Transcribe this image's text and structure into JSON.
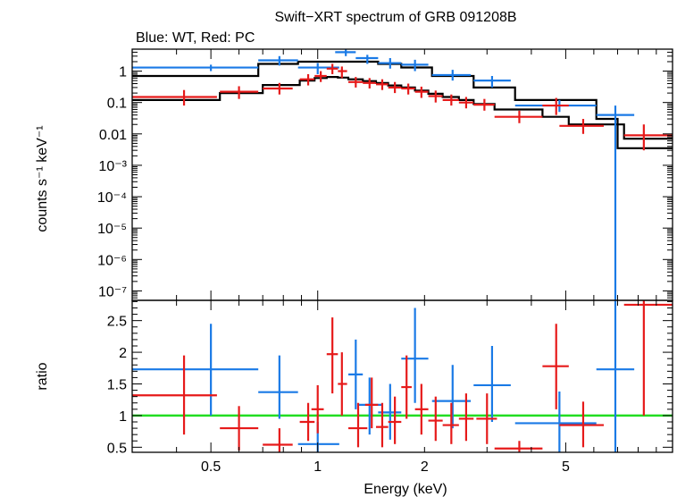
{
  "title": "Swift−XRT spectrum of GRB 091208B",
  "subtitle": "Blue: WT, Red: PC",
  "colors": {
    "wt": "#1a7ae6",
    "pc": "#e61a1a",
    "model": "#000000",
    "ratio_line": "#22dd22"
  },
  "chart_data": [
    {
      "type": "scatter",
      "panel": "spectrum",
      "xlabel": "Energy (keV)",
      "ylabel": "counts s⁻¹ keV⁻¹",
      "xscale": "log",
      "yscale": "log",
      "xlim": [
        0.3,
        10
      ],
      "ylim": [
        5e-08,
        5
      ],
      "xticklabels": [
        "0.5",
        "1",
        "2",
        "5"
      ],
      "yticks": [
        1e-07,
        1e-06,
        1e-05,
        0.0001,
        0.001,
        0.01,
        0.1,
        1
      ],
      "yticklabels": [
        "10⁻⁷",
        "10⁻⁶",
        "10⁻⁵",
        "10⁻⁴",
        "10⁻³",
        "0.01",
        "0.1",
        "1"
      ],
      "series": [
        {
          "name": "WT",
          "color": "#1a7ae6",
          "points": [
            {
              "x": 0.5,
              "xlo": 0.3,
              "xhi": 0.68,
              "y": 1.3,
              "ylo": 1.0,
              "yhi": 1.6
            },
            {
              "x": 0.78,
              "xlo": 0.68,
              "xhi": 0.88,
              "y": 2.2,
              "ylo": 1.5,
              "yhi": 3.0
            },
            {
              "x": 1.0,
              "xlo": 0.88,
              "xhi": 1.15,
              "y": 1.3,
              "ylo": 0.8,
              "yhi": 1.8
            },
            {
              "x": 1.2,
              "xlo": 1.12,
              "xhi": 1.28,
              "y": 4.0,
              "ylo": 3.0,
              "yhi": 5.0
            },
            {
              "x": 1.38,
              "xlo": 1.28,
              "xhi": 1.48,
              "y": 2.6,
              "ylo": 1.7,
              "yhi": 3.3
            },
            {
              "x": 1.6,
              "xlo": 1.48,
              "xhi": 1.72,
              "y": 1.8,
              "ylo": 1.2,
              "yhi": 2.6
            },
            {
              "x": 1.88,
              "xlo": 1.72,
              "xhi": 2.05,
              "y": 1.6,
              "ylo": 1.0,
              "yhi": 2.3
            },
            {
              "x": 2.4,
              "xlo": 2.1,
              "xhi": 2.7,
              "y": 0.75,
              "ylo": 0.5,
              "yhi": 1.1
            },
            {
              "x": 3.1,
              "xlo": 2.75,
              "xhi": 3.5,
              "y": 0.5,
              "ylo": 0.3,
              "yhi": 0.7
            },
            {
              "x": 4.8,
              "xlo": 3.6,
              "xhi": 6.1,
              "y": 0.08,
              "ylo": 0.05,
              "yhi": 0.12
            },
            {
              "x": 6.9,
              "xlo": 6.1,
              "xhi": 7.8,
              "y": 0.04,
              "ylo": 5e-08,
              "yhi": 0.08
            }
          ]
        },
        {
          "name": "PC",
          "color": "#e61a1a",
          "points": [
            {
              "x": 0.42,
              "xlo": 0.3,
              "xhi": 0.52,
              "y": 0.15,
              "ylo": 0.08,
              "yhi": 0.25
            },
            {
              "x": 0.6,
              "xlo": 0.53,
              "xhi": 0.68,
              "y": 0.22,
              "ylo": 0.13,
              "yhi": 0.33
            },
            {
              "x": 0.78,
              "xlo": 0.7,
              "xhi": 0.85,
              "y": 0.28,
              "ylo": 0.18,
              "yhi": 0.42
            },
            {
              "x": 0.94,
              "xlo": 0.89,
              "xhi": 0.98,
              "y": 0.55,
              "ylo": 0.35,
              "yhi": 0.8
            },
            {
              "x": 1.02,
              "xlo": 0.98,
              "xhi": 1.06,
              "y": 0.7,
              "ylo": 0.45,
              "yhi": 1.0
            },
            {
              "x": 1.1,
              "xlo": 1.06,
              "xhi": 1.14,
              "y": 1.2,
              "ylo": 0.8,
              "yhi": 1.7
            },
            {
              "x": 1.17,
              "xlo": 1.14,
              "xhi": 1.21,
              "y": 1.0,
              "ylo": 0.6,
              "yhi": 1.4
            },
            {
              "x": 1.28,
              "xlo": 1.22,
              "xhi": 1.34,
              "y": 0.45,
              "ylo": 0.3,
              "yhi": 0.65
            },
            {
              "x": 1.4,
              "xlo": 1.34,
              "xhi": 1.46,
              "y": 0.42,
              "ylo": 0.28,
              "yhi": 0.6
            },
            {
              "x": 1.52,
              "xlo": 1.46,
              "xhi": 1.58,
              "y": 0.38,
              "ylo": 0.25,
              "yhi": 0.55
            },
            {
              "x": 1.65,
              "xlo": 1.58,
              "xhi": 1.72,
              "y": 0.3,
              "ylo": 0.2,
              "yhi": 0.45
            },
            {
              "x": 1.8,
              "xlo": 1.72,
              "xhi": 1.88,
              "y": 0.28,
              "ylo": 0.18,
              "yhi": 0.4
            },
            {
              "x": 1.96,
              "xlo": 1.88,
              "xhi": 2.05,
              "y": 0.22,
              "ylo": 0.14,
              "yhi": 0.32
            },
            {
              "x": 2.15,
              "xlo": 2.05,
              "xhi": 2.25,
              "y": 0.16,
              "ylo": 0.1,
              "yhi": 0.24
            },
            {
              "x": 2.38,
              "xlo": 2.25,
              "xhi": 2.5,
              "y": 0.12,
              "ylo": 0.08,
              "yhi": 0.18
            },
            {
              "x": 2.62,
              "xlo": 2.5,
              "xhi": 2.75,
              "y": 0.1,
              "ylo": 0.065,
              "yhi": 0.15
            },
            {
              "x": 2.95,
              "xlo": 2.75,
              "xhi": 3.15,
              "y": 0.085,
              "ylo": 0.055,
              "yhi": 0.13
            },
            {
              "x": 3.7,
              "xlo": 3.15,
              "xhi": 4.3,
              "y": 0.035,
              "ylo": 0.022,
              "yhi": 0.055
            },
            {
              "x": 4.7,
              "xlo": 4.3,
              "xhi": 5.1,
              "y": 0.08,
              "ylo": 0.04,
              "yhi": 0.14
            },
            {
              "x": 5.6,
              "xlo": 4.8,
              "xhi": 6.4,
              "y": 0.018,
              "ylo": 0.01,
              "yhi": 0.03
            },
            {
              "x": 8.3,
              "xlo": 7.3,
              "xhi": 10.0,
              "y": 0.009,
              "ylo": 0.003,
              "yhi": 0.02
            }
          ]
        }
      ],
      "models": [
        {
          "name": "WT model",
          "color": "#000000",
          "steps": [
            {
              "x0": 0.3,
              "x1": 0.68,
              "y": 0.7
            },
            {
              "x0": 0.68,
              "x1": 0.88,
              "y": 1.7
            },
            {
              "x0": 0.88,
              "x1": 1.15,
              "y": 2.0
            },
            {
              "x0": 1.15,
              "x1": 1.48,
              "y": 2.0
            },
            {
              "x0": 1.48,
              "x1": 1.72,
              "y": 1.7
            },
            {
              "x0": 1.72,
              "x1": 2.1,
              "y": 1.3
            },
            {
              "x0": 2.1,
              "x1": 2.75,
              "y": 0.7
            },
            {
              "x0": 2.75,
              "x1": 3.6,
              "y": 0.3
            },
            {
              "x0": 3.6,
              "x1": 6.1,
              "y": 0.12
            },
            {
              "x0": 6.1,
              "x1": 7.0,
              "y": 0.03
            },
            {
              "x0": 7.0,
              "x1": 10.0,
              "y": 0.0035
            }
          ]
        },
        {
          "name": "PC model",
          "color": "#000000",
          "steps": [
            {
              "x0": 0.3,
              "x1": 0.53,
              "y": 0.12
            },
            {
              "x0": 0.53,
              "x1": 0.7,
              "y": 0.2
            },
            {
              "x0": 0.7,
              "x1": 0.89,
              "y": 0.36
            },
            {
              "x0": 0.89,
              "x1": 0.98,
              "y": 0.5
            },
            {
              "x0": 0.98,
              "x1": 1.06,
              "y": 0.6
            },
            {
              "x0": 1.06,
              "x1": 1.14,
              "y": 0.65
            },
            {
              "x0": 1.14,
              "x1": 1.22,
              "y": 0.62
            },
            {
              "x0": 1.22,
              "x1": 1.34,
              "y": 0.55
            },
            {
              "x0": 1.34,
              "x1": 1.46,
              "y": 0.48
            },
            {
              "x0": 1.46,
              "x1": 1.58,
              "y": 0.42
            },
            {
              "x0": 1.58,
              "x1": 1.72,
              "y": 0.35
            },
            {
              "x0": 1.72,
              "x1": 1.88,
              "y": 0.3
            },
            {
              "x0": 1.88,
              "x1": 2.05,
              "y": 0.24
            },
            {
              "x0": 2.05,
              "x1": 2.25,
              "y": 0.19
            },
            {
              "x0": 2.25,
              "x1": 2.5,
              "y": 0.15
            },
            {
              "x0": 2.5,
              "x1": 2.75,
              "y": 0.12
            },
            {
              "x0": 2.75,
              "x1": 3.15,
              "y": 0.09
            },
            {
              "x0": 3.15,
              "x1": 4.3,
              "y": 0.06
            },
            {
              "x0": 4.3,
              "x1": 5.1,
              "y": 0.035
            },
            {
              "x0": 5.1,
              "x1": 7.3,
              "y": 0.02
            },
            {
              "x0": 7.3,
              "x1": 10.0,
              "y": 0.007
            }
          ]
        }
      ]
    },
    {
      "type": "scatter",
      "panel": "ratio",
      "xlabel": "Energy (keV)",
      "ylabel": "ratio",
      "xscale": "log",
      "xlim": [
        0.3,
        10
      ],
      "ylim": [
        0.42,
        2.82
      ],
      "xticklabels": [
        "0.5",
        "1",
        "2",
        "5"
      ],
      "yticks": [
        0.5,
        1,
        1.5,
        2,
        2.5
      ],
      "yticklabels": [
        "0.5",
        "1",
        "1.5",
        "2",
        "2.5"
      ],
      "reference_line": 1,
      "series": [
        {
          "name": "WT",
          "color": "#1a7ae6",
          "points": [
            {
              "x": 0.5,
              "xlo": 0.3,
              "xhi": 0.68,
              "y": 1.73,
              "ylo": 1.0,
              "yhi": 2.45
            },
            {
              "x": 0.78,
              "xlo": 0.68,
              "xhi": 0.88,
              "y": 1.37,
              "ylo": 0.95,
              "yhi": 1.95
            },
            {
              "x": 1.0,
              "xlo": 0.88,
              "xhi": 1.15,
              "y": 0.55,
              "ylo": 0.42,
              "yhi": 0.9
            },
            {
              "x": 1.28,
              "xlo": 1.22,
              "xhi": 1.34,
              "y": 1.65,
              "ylo": 1.1,
              "yhi": 2.2
            },
            {
              "x": 1.4,
              "xlo": 1.3,
              "xhi": 1.52,
              "y": 1.17,
              "ylo": 0.7,
              "yhi": 1.6
            },
            {
              "x": 1.6,
              "xlo": 1.48,
              "xhi": 1.72,
              "y": 1.05,
              "ylo": 0.62,
              "yhi": 1.5
            },
            {
              "x": 1.88,
              "xlo": 1.72,
              "xhi": 2.05,
              "y": 1.9,
              "ylo": 1.2,
              "yhi": 2.7
            },
            {
              "x": 2.4,
              "xlo": 2.1,
              "xhi": 2.7,
              "y": 1.23,
              "ylo": 0.8,
              "yhi": 1.8
            },
            {
              "x": 3.1,
              "xlo": 2.75,
              "xhi": 3.5,
              "y": 1.48,
              "ylo": 0.9,
              "yhi": 2.1
            },
            {
              "x": 4.8,
              "xlo": 3.6,
              "xhi": 6.1,
              "y": 0.88,
              "ylo": 0.42,
              "yhi": 1.38
            },
            {
              "x": 6.9,
              "xlo": 6.1,
              "xhi": 7.8,
              "y": 1.73,
              "ylo": 0.42,
              "yhi": 2.82
            }
          ]
        },
        {
          "name": "PC",
          "color": "#e61a1a",
          "points": [
            {
              "x": 0.42,
              "xlo": 0.3,
              "xhi": 0.52,
              "y": 1.32,
              "ylo": 0.7,
              "yhi": 1.95
            },
            {
              "x": 0.6,
              "xlo": 0.53,
              "xhi": 0.68,
              "y": 0.8,
              "ylo": 0.45,
              "yhi": 1.15
            },
            {
              "x": 0.78,
              "xlo": 0.7,
              "xhi": 0.85,
              "y": 0.54,
              "ylo": 0.42,
              "yhi": 0.8
            },
            {
              "x": 0.94,
              "xlo": 0.89,
              "xhi": 0.98,
              "y": 0.9,
              "ylo": 0.6,
              "yhi": 1.2
            },
            {
              "x": 1.0,
              "xlo": 0.96,
              "xhi": 1.04,
              "y": 1.1,
              "ylo": 0.72,
              "yhi": 1.48
            },
            {
              "x": 1.1,
              "xlo": 1.06,
              "xhi": 1.14,
              "y": 1.97,
              "ylo": 1.35,
              "yhi": 2.55
            },
            {
              "x": 1.17,
              "xlo": 1.14,
              "xhi": 1.21,
              "y": 1.5,
              "ylo": 1.0,
              "yhi": 2.0
            },
            {
              "x": 1.3,
              "xlo": 1.22,
              "xhi": 1.38,
              "y": 0.8,
              "ylo": 0.5,
              "yhi": 1.2
            },
            {
              "x": 1.42,
              "xlo": 1.36,
              "xhi": 1.48,
              "y": 1.17,
              "ylo": 0.8,
              "yhi": 1.6
            },
            {
              "x": 1.52,
              "xlo": 1.46,
              "xhi": 1.58,
              "y": 0.82,
              "ylo": 0.5,
              "yhi": 1.2
            },
            {
              "x": 1.65,
              "xlo": 1.58,
              "xhi": 1.72,
              "y": 0.9,
              "ylo": 0.55,
              "yhi": 1.3
            },
            {
              "x": 1.78,
              "xlo": 1.72,
              "xhi": 1.84,
              "y": 1.45,
              "ylo": 0.95,
              "yhi": 1.95
            },
            {
              "x": 1.96,
              "xlo": 1.88,
              "xhi": 2.05,
              "y": 1.1,
              "ylo": 0.7,
              "yhi": 1.5
            },
            {
              "x": 2.15,
              "xlo": 2.05,
              "xhi": 2.25,
              "y": 0.92,
              "ylo": 0.6,
              "yhi": 1.3
            },
            {
              "x": 2.38,
              "xlo": 2.25,
              "xhi": 2.5,
              "y": 0.85,
              "ylo": 0.55,
              "yhi": 1.2
            },
            {
              "x": 2.62,
              "xlo": 2.5,
              "xhi": 2.75,
              "y": 0.95,
              "ylo": 0.6,
              "yhi": 1.35
            },
            {
              "x": 3.0,
              "xlo": 2.8,
              "xhi": 3.2,
              "y": 0.95,
              "ylo": 0.55,
              "yhi": 1.35
            },
            {
              "x": 3.7,
              "xlo": 3.15,
              "xhi": 4.3,
              "y": 0.48,
              "ylo": 0.42,
              "yhi": 0.6
            },
            {
              "x": 4.7,
              "xlo": 4.3,
              "xhi": 5.1,
              "y": 1.78,
              "ylo": 1.1,
              "yhi": 2.45
            },
            {
              "x": 5.6,
              "xlo": 4.8,
              "xhi": 6.4,
              "y": 0.85,
              "ylo": 0.5,
              "yhi": 1.22
            },
            {
              "x": 8.3,
              "xlo": 7.3,
              "xhi": 10.0,
              "y": 2.75,
              "ylo": 1.0,
              "yhi": 2.82
            }
          ]
        }
      ]
    }
  ]
}
